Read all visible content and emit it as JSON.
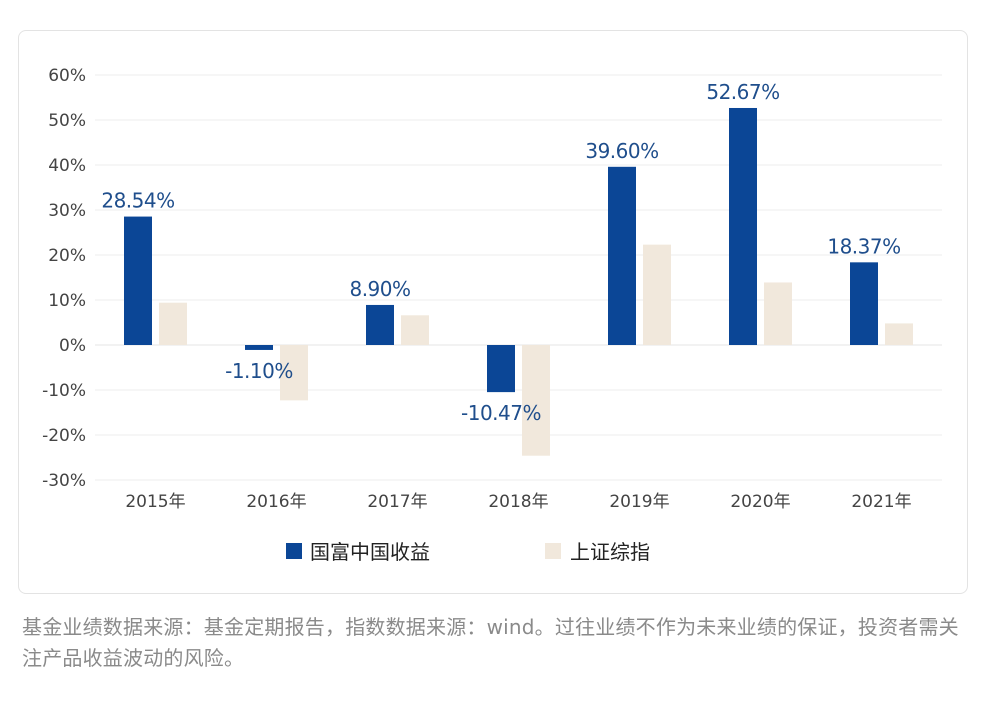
{
  "chart_data": {
    "type": "bar",
    "categories": [
      "2015年",
      "2016年",
      "2017年",
      "2018年",
      "2019年",
      "2020年",
      "2021年"
    ],
    "series": [
      {
        "name": "国富中国收益",
        "color": "#0b4696",
        "values": [
          28.54,
          -1.1,
          8.9,
          -10.47,
          39.6,
          52.67,
          18.37
        ],
        "labels": [
          "28.54%",
          "-1.10%",
          "8.90%",
          "-10.47%",
          "39.60%",
          "52.67%",
          "18.37%"
        ]
      },
      {
        "name": "上证综指",
        "color": "#f1e8dc",
        "values": [
          9.4,
          -12.3,
          6.6,
          -24.6,
          22.3,
          13.9,
          4.8
        ]
      }
    ],
    "yticks": [
      "60%",
      "50%",
      "40%",
      "30%",
      "20%",
      "10%",
      "0%",
      "-10%",
      "-20%",
      "-30%"
    ],
    "ylim": [
      -30,
      60
    ],
    "legend_position": "bottom"
  },
  "footnote": "基金业绩数据来源：基金定期报告，指数数据来源：wind。过往业绩不作为未来业绩的保证，投资者需关注产品收益波动的风险。"
}
